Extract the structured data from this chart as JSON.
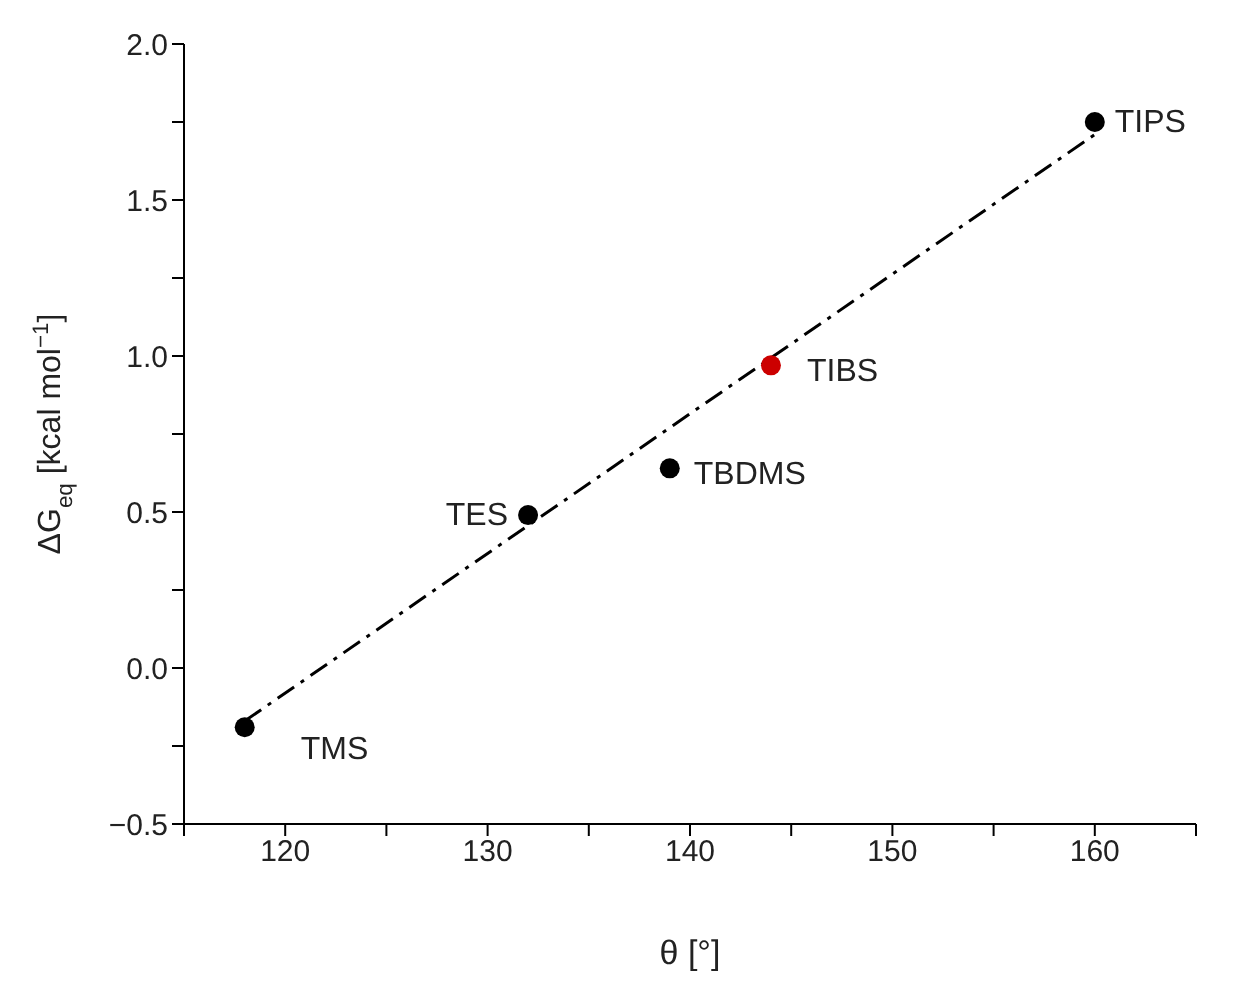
{
  "chart_data": {
    "type": "scatter",
    "xlabel": "θ [°]",
    "ylabel": "ΔG$_{eq}$ [kcal mol$^{−1}$]",
    "xlim": [
      115,
      165
    ],
    "ylim": [
      -0.5,
      2.0
    ],
    "xticks": [
      {
        "value": 115,
        "label": null
      },
      120,
      {
        "value": 125,
        "label": null
      },
      130,
      {
        "value": 135,
        "label": null
      },
      140,
      {
        "value": 145,
        "label": null
      },
      150,
      {
        "value": 155,
        "label": null
      },
      160,
      {
        "value": 165,
        "label": null
      }
    ],
    "yticks": [
      {
        "value": -0.5,
        "label": "−0.5"
      },
      {
        "value": -0.25,
        "label": null
      },
      {
        "value": 0,
        "label": "0.0"
      },
      {
        "value": 0.25,
        "label": null
      },
      {
        "value": 0.5,
        "label": "0.5"
      },
      {
        "value": 0.75,
        "label": null
      },
      {
        "value": 1.0,
        "label": "1.0"
      },
      {
        "value": 1.25,
        "label": null
      },
      {
        "value": 1.5,
        "label": "1.5"
      },
      {
        "value": 1.75,
        "label": null
      },
      {
        "value": 2.0,
        "label": "2.0"
      }
    ],
    "grid": false,
    "marker": "circle",
    "series": [
      {
        "x": [
          118,
          132,
          139,
          144,
          160
        ],
        "values": [
          -0.19,
          0.49,
          0.64,
          0.97,
          1.75
        ],
        "colors": [
          "#000000",
          "#000000",
          "#000000",
          "#cc0000",
          "#000000"
        ]
      },
      {
        "type": "line",
        "x": [
          118,
          160
        ],
        "values": [
          -0.17,
          1.71
        ],
        "color": "#000000",
        "line_style": "dashed",
        "marker": "none"
      }
    ],
    "annotations": [
      {
        "text": "TMS",
        "x": 118,
        "y": -0.19
      },
      {
        "text": "TES",
        "x": 132,
        "y": 0.49
      },
      {
        "text": "TBDMS",
        "x": 139,
        "y": 0.64
      },
      {
        "text": "TIBS",
        "x": 144,
        "y": 0.97
      },
      {
        "text": "TIPS",
        "x": 160,
        "y": 1.75
      }
    ]
  }
}
